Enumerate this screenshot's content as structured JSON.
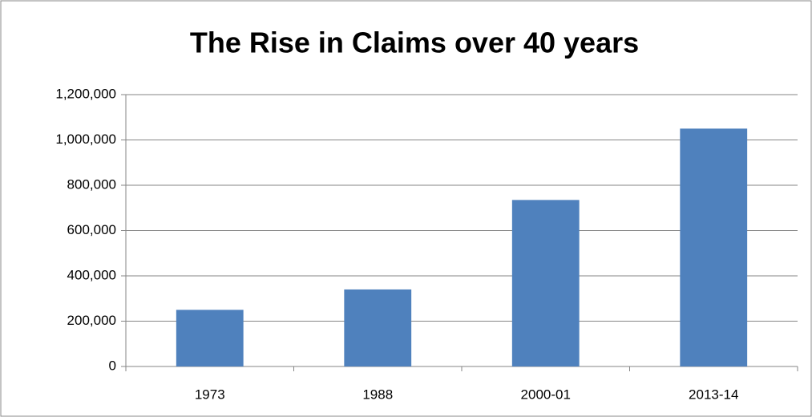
{
  "chart_data": {
    "type": "bar",
    "title": "The Rise in Claims over 40 years",
    "categories": [
      "1973",
      "1988",
      "2000-01",
      "2013-14"
    ],
    "values": [
      250000,
      340000,
      735000,
      1050000
    ],
    "color": "#4f81bd",
    "ylim": [
      0,
      1200000
    ],
    "yticks": [
      0,
      {
        "value": 200000,
        "label": "200,000"
      },
      {
        "value": 400000,
        "label": "400,000"
      },
      {
        "value": 600000,
        "label": "600,000"
      },
      {
        "value": 800000,
        "label": "800,000"
      },
      {
        "value": 1000000,
        "label": "1,000,000"
      },
      {
        "value": 1200000,
        "label": "1,200,000"
      }
    ],
    "grid": true
  }
}
